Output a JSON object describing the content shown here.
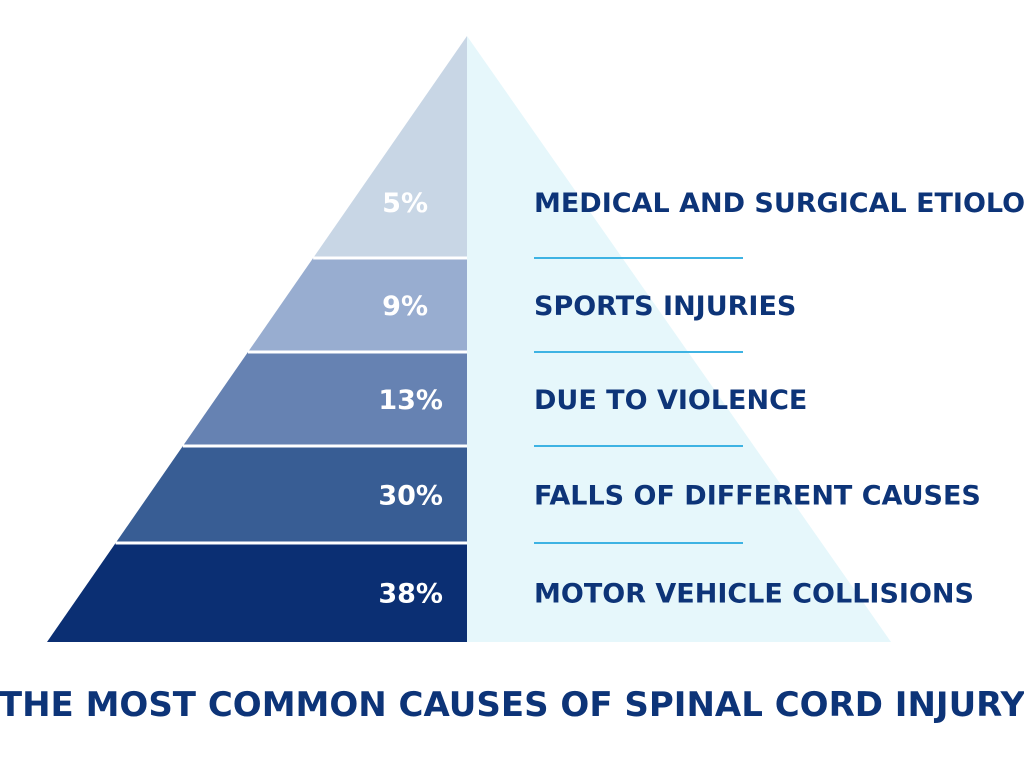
{
  "chart_data": {
    "type": "pyramid",
    "title": "THE MOST COMMON CAUSES OF SPINAL CORD INJURY",
    "categories": [
      "MEDICAL AND SURGICAL ETIOLOGIES",
      "SPORTS INJURIES",
      "DUE TO VIOLENCE",
      "FALLS OF DIFFERENT CAUSES",
      "MOTOR VEHICLE COLLISIONS"
    ],
    "values": [
      5,
      9,
      13,
      30,
      38
    ],
    "value_labels": [
      "5%",
      "9%",
      "13%",
      "30%",
      "38%"
    ],
    "unit": "%",
    "order": "top-to-bottom",
    "legend": "none",
    "grid": false
  },
  "colors": {
    "layers": [
      "#c8d6e5",
      "#98add0",
      "#6682b2",
      "#385d94",
      "#0b2f73"
    ],
    "right_face": "#e6f7fb",
    "divider": "#3eb3e3",
    "text_dark": "#0d3478",
    "text_light": "#ffffff"
  }
}
